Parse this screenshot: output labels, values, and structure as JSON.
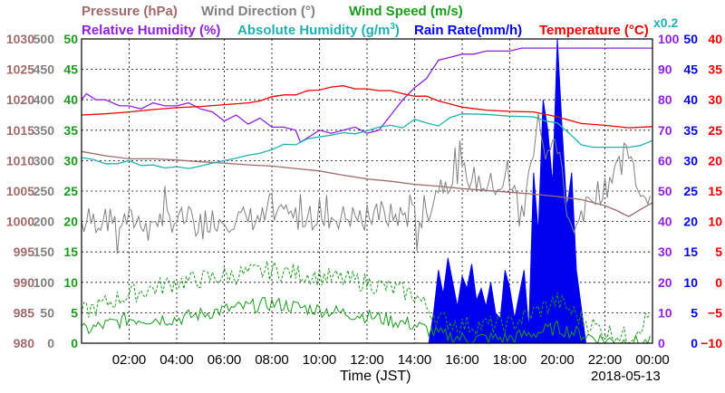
{
  "chart_data": {
    "type": "line",
    "date": "2018-05-13",
    "xlabel": "Time (JST)",
    "x_range": [
      "00:00",
      "24:00"
    ],
    "x_ticks": [
      "02:00",
      "04:00",
      "06:00",
      "08:00",
      "10:00",
      "12:00",
      "14:00",
      "16:00",
      "18:00",
      "20:00",
      "22:00",
      "00:00"
    ],
    "grid": true,
    "legend": {
      "row1": [
        {
          "text": "Pressure (hPa)",
          "color": "#a06a6a"
        },
        {
          "text": "Wind Direction (°)",
          "color": "#808080"
        },
        {
          "text": "Wind Speed (m/s)",
          "color": "#1a9a1a"
        }
      ],
      "row2": [
        {
          "text": "Relative Humidity (%)",
          "color": "#9020e0"
        },
        {
          "text": "Absolute Humidity (g/m",
          "sup": "3",
          "close": ")",
          "color": "#20b0b0"
        },
        {
          "text": "Rain Rate(mm/h)",
          "color": "#0000ee"
        },
        {
          "text": "Temperature (°C)",
          "color": "#ee0000"
        }
      ],
      "abs_humidity_factor": "x0.2"
    },
    "axes": {
      "pressure": {
        "color": "#a06a6a",
        "range": [
          980,
          1030
        ],
        "ticks": [
          1030,
          1025,
          1020,
          1015,
          1010,
          1005,
          1000,
          995,
          990,
          985,
          980
        ]
      },
      "wind_direction": {
        "color": "#808080",
        "range": [
          0,
          500
        ],
        "ticks": [
          500,
          450,
          400,
          350,
          300,
          250,
          200,
          150,
          100,
          50,
          0
        ]
      },
      "wind_speed": {
        "color": "#1a9a1a",
        "range": [
          0,
          50
        ],
        "ticks": [
          50,
          45,
          40,
          35,
          30,
          25,
          20,
          15,
          10,
          5,
          0
        ]
      },
      "relative_humidity": {
        "color": "#9020e0",
        "range": [
          0,
          100
        ],
        "ticks": [
          100,
          90,
          80,
          70,
          60,
          50,
          40,
          30,
          20,
          10,
          0
        ]
      },
      "rain_rate": {
        "color": "#0000ee",
        "range": [
          0,
          50
        ],
        "ticks": [
          50,
          45,
          40,
          35,
          30,
          25,
          20,
          15,
          10,
          5,
          0
        ]
      },
      "temperature": {
        "color": "#ee0000",
        "range": [
          -10,
          40
        ],
        "ticks": [
          "40",
          "35",
          "30",
          "25",
          "20",
          "15",
          "10",
          "5",
          "0",
          "−5",
          "−10"
        ]
      }
    },
    "series": [
      {
        "name": "Pressure (hPa)",
        "axis": "pressure",
        "color": "#a06a6a",
        "x": [
          0,
          1,
          2,
          3,
          4,
          5,
          6,
          7,
          8,
          9,
          10,
          11,
          12,
          13,
          14,
          15,
          16,
          17,
          18,
          19,
          20,
          21,
          22,
          22.5,
          23,
          23.5,
          24
        ],
        "y": [
          1011.5,
          1010.8,
          1010.3,
          1010.3,
          1010.1,
          1009.8,
          1009.6,
          1009.3,
          1009.1,
          1008.7,
          1008.3,
          1007.6,
          1007,
          1006.6,
          1006.1,
          1005.8,
          1005.4,
          1005.1,
          1004.8,
          1004.5,
          1004.1,
          1003.6,
          1002.6,
          1001.8,
          1000.8,
          1002,
          1003.1
        ]
      },
      {
        "name": "Relative Humidity (%)",
        "axis": "relative_humidity",
        "color": "#9020e0",
        "x": [
          0,
          0.2,
          0.6,
          1,
          1.6,
          2,
          2.5,
          3,
          3.5,
          4,
          4.5,
          5,
          5.5,
          6,
          6.5,
          7,
          7.5,
          8,
          8.5,
          9,
          9.2,
          9.6,
          10,
          10.5,
          11,
          11.5,
          12,
          12.5,
          13,
          13.5,
          14,
          14.5,
          15,
          15.5,
          16,
          16.5,
          17,
          17.5,
          18,
          18.5,
          19,
          19.5,
          20,
          21,
          22,
          23,
          24
        ],
        "y": [
          80,
          82,
          80,
          80,
          78,
          78,
          77,
          79,
          78,
          78,
          79,
          77,
          76,
          73,
          75,
          72,
          74,
          71,
          71,
          70,
          66,
          68,
          70,
          69,
          70,
          71,
          69,
          70,
          75,
          80,
          84,
          87,
          93,
          94,
          95,
          95,
          96,
          96,
          96,
          97,
          97,
          97,
          97,
          97,
          97,
          97,
          97
        ]
      },
      {
        "name": "Absolute Humidity (g/m3) x0.2",
        "axis": "pressure",
        "color": "#20b0b0",
        "x": [
          0,
          0.5,
          1,
          1.5,
          2,
          2.5,
          3,
          3.5,
          4,
          4.5,
          5,
          5.5,
          6,
          6.5,
          7,
          7.5,
          8,
          8.5,
          9,
          9.5,
          10,
          10.5,
          11,
          11.5,
          12,
          12.5,
          13,
          13.5,
          14,
          14.5,
          15,
          15.5,
          16,
          17,
          18,
          19,
          19.5,
          20,
          20.5,
          21,
          21.5,
          22,
          23,
          23.5,
          24
        ],
        "y": [
          1010.5,
          1010.2,
          1009.5,
          1009.5,
          1010,
          1009.2,
          1009.3,
          1008.8,
          1009,
          1008.7,
          1009.1,
          1009.6,
          1010,
          1010.4,
          1010.9,
          1011.2,
          1011.8,
          1012.7,
          1012.6,
          1013.6,
          1013.9,
          1014.2,
          1014.6,
          1014.4,
          1014.9,
          1015.5,
          1015.8,
          1015.4,
          1016.8,
          1016.2,
          1015.7,
          1017.1,
          1017.7,
          1017.6,
          1017.3,
          1017.2,
          1016.5,
          1016.2,
          1014.5,
          1012.6,
          1012.2,
          1012.2,
          1012.2,
          1012.5,
          1013.3
        ]
      },
      {
        "name": "Temperature (°C)",
        "axis": "temperature",
        "color": "#ee0000",
        "x": [
          0,
          1,
          2,
          3,
          4,
          5,
          6,
          7,
          7.5,
          8,
          8.5,
          9,
          9.5,
          10,
          10.5,
          11,
          11.5,
          12,
          12.5,
          13,
          13.5,
          14,
          14.5,
          15,
          15.5,
          16,
          17,
          18,
          19,
          20,
          21,
          22,
          23,
          24
        ],
        "y": [
          27.5,
          27.7,
          28,
          28.4,
          28.7,
          28.9,
          29.2,
          29.5,
          29.8,
          30.5,
          30.8,
          30.8,
          31.5,
          31.6,
          32.1,
          32.3,
          31.8,
          31.8,
          31.5,
          31.5,
          31,
          30.6,
          30.6,
          29.8,
          29.3,
          28.8,
          28.3,
          28.1,
          28,
          27.2,
          26.1,
          25.8,
          25.4,
          25.6
        ]
      },
      {
        "name": "Wind Direction (°)",
        "axis": "wind_direction",
        "color": "#808080",
        "style": "noisy",
        "x": [
          0,
          14.5,
          15,
          16,
          17,
          18,
          18.6,
          19.2,
          19.5,
          20,
          20.5,
          21,
          21.5,
          22,
          22.5,
          23,
          23.5,
          24
        ],
        "y": [
          200,
          210,
          260,
          280,
          260,
          260,
          220,
          380,
          300,
          320,
          200,
          200,
          250,
          250,
          300,
          320,
          250,
          250
        ]
      },
      {
        "name": "Wind Speed (m/s) mean",
        "axis": "wind_speed",
        "color": "#1a9a1a",
        "style": "noisy",
        "x": [
          0,
          2,
          4,
          6,
          8,
          10,
          12,
          14,
          15,
          16,
          18,
          20,
          21,
          22,
          23,
          24
        ],
        "y": [
          2,
          4,
          4,
          5.5,
          6.5,
          5.5,
          4.5,
          3,
          1.5,
          0.8,
          0.8,
          2.5,
          1.5,
          0.5,
          0.2,
          0
        ]
      },
      {
        "name": "Wind Speed (m/s) gust",
        "axis": "wind_speed",
        "color": "#1a9a1a",
        "style": "dashed",
        "x": [
          0,
          2,
          4,
          6,
          8,
          10,
          12,
          14,
          15,
          16,
          18,
          20,
          21,
          22,
          23,
          24
        ],
        "y": [
          5,
          8,
          10,
          11,
          12,
          11,
          10,
          8,
          4,
          3,
          3,
          7,
          4,
          2,
          1,
          5
        ]
      },
      {
        "name": "Rain Rate(mm/h)",
        "axis": "rain_rate",
        "color": "#0000ee",
        "style": "filled",
        "x": [
          14.6,
          14.8,
          15,
          15.2,
          15.4,
          15.6,
          15.8,
          16,
          16.2,
          16.4,
          16.6,
          16.8,
          17,
          17.2,
          17.4,
          17.6,
          17.8,
          18,
          18.2,
          18.4,
          18.6,
          18.8,
          19,
          19.2,
          19.4,
          19.6,
          19.8,
          20,
          20.2,
          20.4,
          20.6,
          20.8,
          21,
          21.2
        ],
        "y": [
          0,
          5,
          12,
          8,
          14,
          10,
          6,
          11,
          9,
          13,
          7,
          9,
          6,
          10,
          5,
          4,
          12,
          9,
          4,
          8,
          12,
          2,
          28,
          18,
          40,
          35,
          26,
          50,
          35,
          22,
          28,
          12,
          6,
          0
        ]
      }
    ]
  }
}
